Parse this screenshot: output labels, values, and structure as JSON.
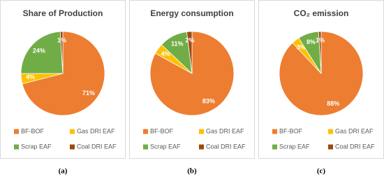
{
  "chart_data": [
    {
      "type": "pie",
      "title": "Share of Production",
      "caption": "(a)",
      "categories": [
        "BF-BOF",
        "Gas DRI EAF",
        "Scrap EAF",
        "Coal DRI EAF"
      ],
      "values": [
        71,
        4,
        24,
        1
      ],
      "value_labels": [
        "71%",
        "4%",
        "24%",
        "1%"
      ],
      "colors": [
        "#ED7D31",
        "#FFC000",
        "#70AD47",
        "#9E480E"
      ]
    },
    {
      "type": "pie",
      "title": "Energy consumption",
      "caption": "(b)",
      "categories": [
        "BF-BOF",
        "Gas DRI EAF",
        "Scrap EAF",
        "Coal DRI EAF"
      ],
      "values": [
        83,
        4,
        11,
        2
      ],
      "value_labels": [
        "83%",
        "4%",
        "11%",
        "2%"
      ],
      "colors": [
        "#ED7D31",
        "#FFC000",
        "#70AD47",
        "#9E480E"
      ]
    },
    {
      "type": "pie",
      "title": "CO₂ emission",
      "caption": "(c)",
      "categories": [
        "BF-BOF",
        "Gas DRI EAF",
        "Scrap EAF",
        "Coal DRI EAF"
      ],
      "values": [
        88,
        3,
        8,
        1
      ],
      "value_labels": [
        "88%",
        "3%",
        "8%",
        "1%"
      ],
      "colors": [
        "#ED7D31",
        "#FFC000",
        "#70AD47",
        "#9E480E"
      ]
    }
  ]
}
